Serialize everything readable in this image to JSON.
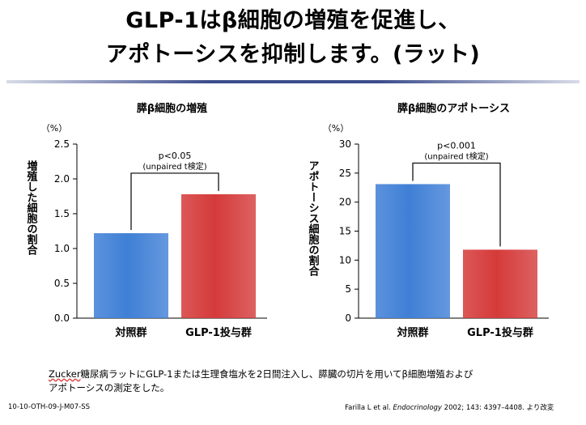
{
  "slide": {
    "title_line1": "GLP-1はβ細胞の増殖を促進し、",
    "title_line2": "アポトーシスを抑制します。(ラット)",
    "footnote_line1_brand": "Zucker",
    "footnote_line1_rest": "糖尿病ラットにGLP-1または生理食塩水を2日間注入し、膵臓の切片を用いてβ細胞増殖および",
    "footnote_line2": "アポトーシスの測定をした。",
    "slide_code": "10-10-OTH-09-J-M07-SS",
    "citation_authors": "Farilla L et al.",
    "citation_journal": "Endocrinology",
    "citation_rest": "2002; 143: 4397–4408. より改変"
  },
  "colors": {
    "control": "#3f7fd6",
    "glp1": "#d53a3a"
  },
  "chart_data": [
    {
      "type": "bar",
      "title": "膵β細胞の増殖",
      "unit": "（%）",
      "ylabel": "増殖した細胞の割合",
      "ylim": [
        0,
        2.5
      ],
      "yticks": [
        "0.0",
        "0.5",
        "1.0",
        "1.5",
        "2.0",
        "2.5"
      ],
      "grid": false,
      "categories": [
        "対照群",
        "GLP-1投与群"
      ],
      "values": [
        1.22,
        1.78
      ],
      "annotation_line1": "p<0.05",
      "annotation_line2": "(unpaired t検定)"
    },
    {
      "type": "bar",
      "title": "膵β細胞のアポトーシス",
      "unit": "（%）",
      "ylabel": "アポトーシス細胞の割合",
      "ylim": [
        0,
        30
      ],
      "yticks": [
        "0",
        "5",
        "10",
        "15",
        "20",
        "25",
        "30"
      ],
      "grid": false,
      "categories": [
        "対照群",
        "GLP-1投与群"
      ],
      "values": [
        23.1,
        11.8
      ],
      "annotation_line1": "p<0.001",
      "annotation_line2": "(unpaired t検定)"
    }
  ]
}
